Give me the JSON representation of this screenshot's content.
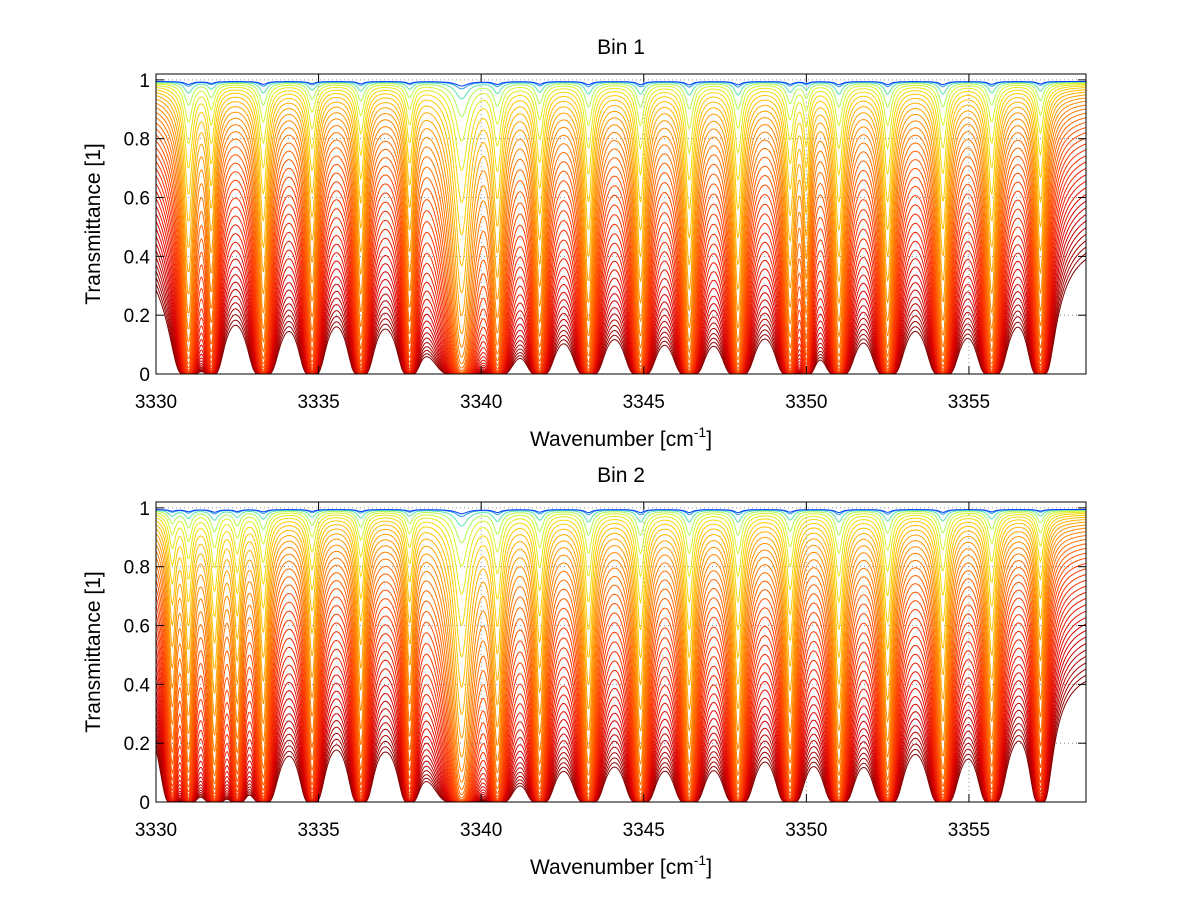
{
  "chart_data": [
    {
      "type": "line",
      "title": "Bin 1",
      "xlabel": "Wavenumber [cm",
      "xlabel_sup": "-1",
      "xlabel_end": "]",
      "ylabel": "Transmittance [1]",
      "xlim": [
        3330,
        3358.6
      ],
      "ylim": [
        0,
        1.02
      ],
      "xticks": [
        3330,
        3335,
        3340,
        3345,
        3350,
        3355
      ],
      "xtick_labels": [
        "3330",
        "3335",
        "3340",
        "3345",
        "3350",
        "3355"
      ],
      "yticks": [
        0,
        0.2,
        0.4,
        0.6,
        0.8,
        1
      ],
      "ytick_labels": [
        "0",
        "0.2",
        "0.4",
        "0.6",
        "0.8",
        "1"
      ],
      "grid": "dotted",
      "line_count": 40,
      "absorption_lines": [
        {
          "x": 3331.0,
          "depth": 0.55,
          "width": 0.14
        },
        {
          "x": 3331.7,
          "depth": 0.35,
          "width": 0.12
        },
        {
          "x": 3333.3,
          "depth": 0.55,
          "width": 0.13
        },
        {
          "x": 3334.8,
          "depth": 0.4,
          "width": 0.13
        },
        {
          "x": 3336.3,
          "depth": 0.45,
          "width": 0.12
        },
        {
          "x": 3337.8,
          "depth": 0.35,
          "width": 0.12
        },
        {
          "x": 3339.4,
          "depth": 0.85,
          "width": 0.22
        },
        {
          "x": 3340.5,
          "depth": 0.55,
          "width": 0.14
        },
        {
          "x": 3341.8,
          "depth": 0.5,
          "width": 0.13
        },
        {
          "x": 3343.3,
          "depth": 0.6,
          "width": 0.13
        },
        {
          "x": 3344.9,
          "depth": 0.6,
          "width": 0.13
        },
        {
          "x": 3346.4,
          "depth": 0.65,
          "width": 0.13
        },
        {
          "x": 3347.9,
          "depth": 0.65,
          "width": 0.13
        },
        {
          "x": 3349.5,
          "depth": 0.5,
          "width": 0.13
        },
        {
          "x": 3350.0,
          "depth": 0.35,
          "width": 0.1
        },
        {
          "x": 3351.0,
          "depth": 0.6,
          "width": 0.13
        },
        {
          "x": 3352.5,
          "depth": 0.6,
          "width": 0.13
        },
        {
          "x": 3354.2,
          "depth": 0.6,
          "width": 0.13
        },
        {
          "x": 3355.7,
          "depth": 0.55,
          "width": 0.13
        },
        {
          "x": 3357.2,
          "depth": 0.45,
          "width": 0.12
        }
      ]
    },
    {
      "type": "line",
      "title": "Bin 2",
      "xlabel": "Wavenumber [cm",
      "xlabel_sup": "-1",
      "xlabel_end": "]",
      "ylabel": "Transmittance [1]",
      "xlim": [
        3330,
        3358.6
      ],
      "ylim": [
        0,
        1.02
      ],
      "xticks": [
        3330,
        3335,
        3340,
        3345,
        3350,
        3355
      ],
      "xtick_labels": [
        "3330",
        "3335",
        "3340",
        "3345",
        "3350",
        "3355"
      ],
      "yticks": [
        0,
        0.2,
        0.4,
        0.6,
        0.8,
        1
      ],
      "ytick_labels": [
        "0",
        "0.2",
        "0.4",
        "0.6",
        "0.8",
        "1"
      ],
      "grid": "dotted",
      "line_count": 40,
      "absorption_lines": [
        {
          "x": 3330.5,
          "depth": 0.3,
          "width": 0.12
        },
        {
          "x": 3331.0,
          "depth": 0.4,
          "width": 0.12
        },
        {
          "x": 3331.8,
          "depth": 0.5,
          "width": 0.13
        },
        {
          "x": 3332.5,
          "depth": 0.35,
          "width": 0.12
        },
        {
          "x": 3333.3,
          "depth": 0.45,
          "width": 0.13
        },
        {
          "x": 3334.8,
          "depth": 0.35,
          "width": 0.13
        },
        {
          "x": 3336.3,
          "depth": 0.4,
          "width": 0.12
        },
        {
          "x": 3337.8,
          "depth": 0.3,
          "width": 0.12
        },
        {
          "x": 3339.4,
          "depth": 0.8,
          "width": 0.22
        },
        {
          "x": 3340.5,
          "depth": 0.55,
          "width": 0.14
        },
        {
          "x": 3341.8,
          "depth": 0.5,
          "width": 0.13
        },
        {
          "x": 3343.3,
          "depth": 0.6,
          "width": 0.13
        },
        {
          "x": 3344.9,
          "depth": 0.6,
          "width": 0.13
        },
        {
          "x": 3346.4,
          "depth": 0.6,
          "width": 0.13
        },
        {
          "x": 3347.9,
          "depth": 0.6,
          "width": 0.13
        },
        {
          "x": 3349.5,
          "depth": 0.5,
          "width": 0.13
        },
        {
          "x": 3351.0,
          "depth": 0.6,
          "width": 0.13
        },
        {
          "x": 3352.5,
          "depth": 0.55,
          "width": 0.13
        },
        {
          "x": 3354.2,
          "depth": 0.55,
          "width": 0.13
        },
        {
          "x": 3355.7,
          "depth": 0.45,
          "width": 0.13
        },
        {
          "x": 3357.2,
          "depth": 0.3,
          "width": 0.12
        }
      ]
    }
  ]
}
